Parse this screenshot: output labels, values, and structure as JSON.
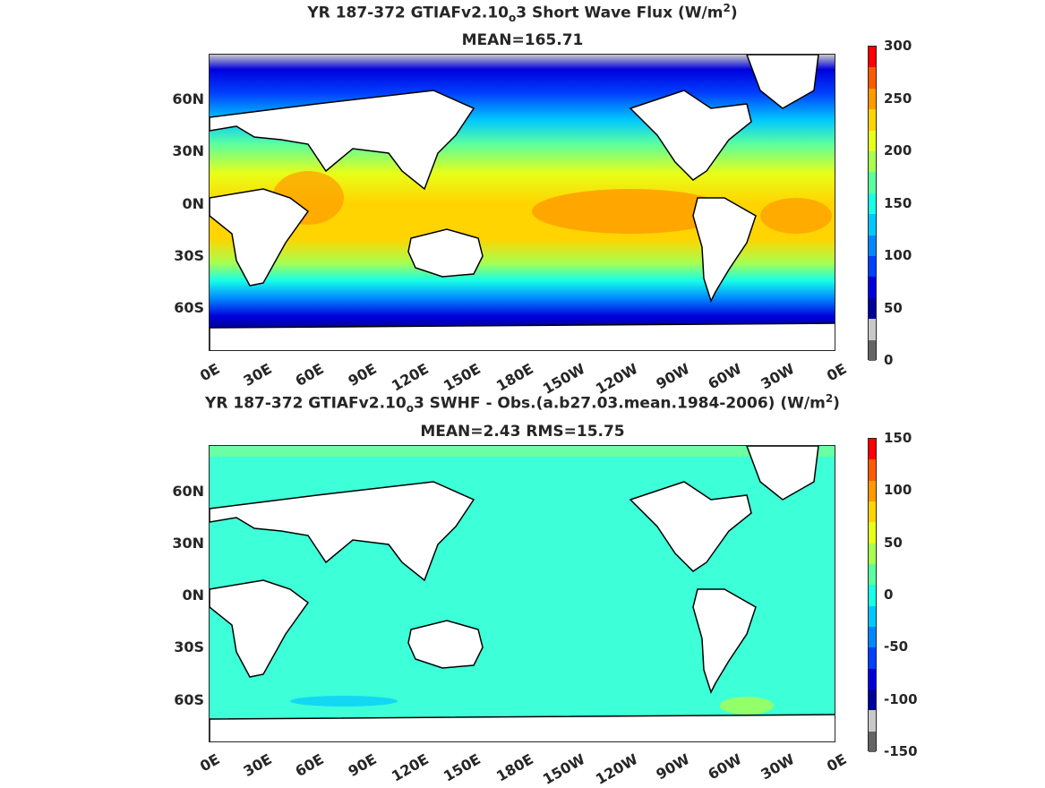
{
  "panels": [
    {
      "title_prefix": "YR 187-372 GTIAFv2.10",
      "title_sub": "o",
      "title_mid": "3  Short Wave Flux (W/m",
      "title_sup": "2",
      "title_suffix": ")",
      "subtitle": "MEAN=165.71",
      "colorbar_ticks": [
        "300",
        "250",
        "200",
        "150",
        "100",
        "50",
        "0"
      ],
      "colorbar_colors": [
        "#ff0000",
        "#ff5a00",
        "#ff9a00",
        "#ffd400",
        "#e8ff18",
        "#a8ff50",
        "#5affa0",
        "#18ffe8",
        "#00c8ff",
        "#0088ff",
        "#0040ff",
        "#0000dd",
        "#00009a",
        "#c8c8c8",
        "#646464"
      ]
    },
    {
      "title_prefix": "YR 187-372 GTIAFv2.10",
      "title_sub": "o",
      "title_mid": "3 SWHF - Obs.(a.b27.03.mean.1984-2006) (W/m",
      "title_sup": "2",
      "title_suffix": ")",
      "subtitle": "MEAN=2.43 RMS=15.75",
      "colorbar_ticks": [
        "150",
        "100",
        "50",
        "0",
        "-50",
        "-100",
        "-150"
      ],
      "colorbar_colors": [
        "#ff0000",
        "#ff5a00",
        "#ff9a00",
        "#ffd400",
        "#e8ff18",
        "#a8ff50",
        "#5affa0",
        "#18ffe8",
        "#00c8ff",
        "#0088ff",
        "#0040ff",
        "#0000dd",
        "#00009a",
        "#c8c8c8",
        "#646464"
      ]
    }
  ],
  "lat_labels": [
    "60N",
    "30N",
    "0N",
    "30S",
    "60S"
  ],
  "lon_labels": [
    "0E",
    "30E",
    "60E",
    "90E",
    "120E",
    "150E",
    "180E",
    "150W",
    "120W",
    "90W",
    "60W",
    "30W",
    "0E"
  ]
}
